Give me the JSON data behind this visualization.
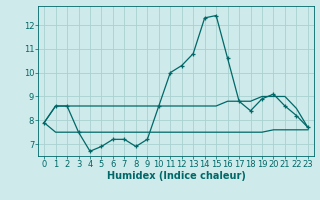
{
  "title": "",
  "xlabel": "Humidex (Indice chaleur)",
  "background_color": "#ceeaea",
  "grid_color": "#aad0d0",
  "line_color": "#006868",
  "x": [
    0,
    1,
    2,
    3,
    4,
    5,
    6,
    7,
    8,
    9,
    10,
    11,
    12,
    13,
    14,
    15,
    16,
    17,
    18,
    19,
    20,
    21,
    22,
    23
  ],
  "y_main": [
    7.9,
    8.6,
    8.6,
    7.5,
    6.7,
    6.9,
    7.2,
    7.2,
    6.9,
    7.2,
    8.6,
    10.0,
    10.3,
    10.8,
    12.3,
    12.4,
    10.6,
    8.8,
    8.4,
    8.9,
    9.1,
    8.6,
    8.2,
    7.7
  ],
  "y_low": [
    7.9,
    7.5,
    7.5,
    7.5,
    7.5,
    7.5,
    7.5,
    7.5,
    7.5,
    7.5,
    7.5,
    7.5,
    7.5,
    7.5,
    7.5,
    7.5,
    7.5,
    7.5,
    7.5,
    7.5,
    7.6,
    7.6,
    7.6,
    7.6
  ],
  "y_high": [
    7.9,
    8.6,
    8.6,
    8.6,
    8.6,
    8.6,
    8.6,
    8.6,
    8.6,
    8.6,
    8.6,
    8.6,
    8.6,
    8.6,
    8.6,
    8.6,
    8.8,
    8.8,
    8.8,
    9.0,
    9.0,
    9.0,
    8.5,
    7.7
  ],
  "ylim": [
    6.5,
    12.8
  ],
  "yticks": [
    7,
    8,
    9,
    10,
    11,
    12
  ],
  "xlim": [
    -0.5,
    23.5
  ],
  "xticks": [
    0,
    1,
    2,
    3,
    4,
    5,
    6,
    7,
    8,
    9,
    10,
    11,
    12,
    13,
    14,
    15,
    16,
    17,
    18,
    19,
    20,
    21,
    22,
    23
  ],
  "xtick_labels": [
    "0",
    "1",
    "2",
    "3",
    "4",
    "5",
    "6",
    "7",
    "8",
    "9",
    "10",
    "11",
    "12",
    "13",
    "14",
    "15",
    "16",
    "17",
    "18",
    "19",
    "20",
    "21",
    "22",
    "23"
  ],
  "marker": "+",
  "markersize": 3,
  "linewidth": 0.9,
  "fontsize_ticks": 6,
  "fontsize_xlabel": 7
}
